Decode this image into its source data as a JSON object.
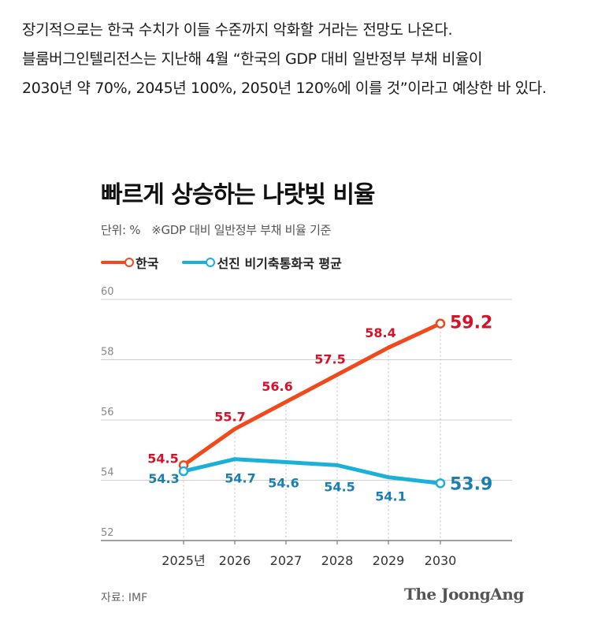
{
  "article": {
    "lines": [
      "장기적으로는 한국 수치가 이들 수준까지 악화할 거라는 전망도 나온다.",
      "블룸버그인텔리전스는 지난해 4월 “한국의 GDP 대비 일반정부 부채 비율이",
      "2030년 약 70%, 2045년 100%, 2050년 120%에 이를 것”이라고 예상한 바 있다."
    ]
  },
  "chart_data": {
    "type": "line",
    "title": "빠르게 상승하는 나랏빚 비율",
    "unit": "단위: %",
    "note": "※GDP 대비 일반정부 부채 비율 기준",
    "categories": [
      "2025년",
      "2026",
      "2027",
      "2028",
      "2029",
      "2030"
    ],
    "series": [
      {
        "name": "한국",
        "color": "#f04a1c",
        "label_color": "#d4132a",
        "values": [
          54.5,
          55.7,
          56.6,
          57.5,
          58.4,
          59.2
        ]
      },
      {
        "name": "선진 비기축통화국 평균",
        "color": "#1bb0d8",
        "label_color": "#1a7fb0",
        "values": [
          54.3,
          54.7,
          54.6,
          54.5,
          54.1,
          53.9
        ]
      }
    ],
    "ylim": [
      52,
      60
    ],
    "yticks": [
      52,
      54,
      56,
      58,
      60
    ],
    "grid": true,
    "legend": "top-left"
  },
  "footer": {
    "source": "자료: IMF",
    "logo": "The JoongAng"
  }
}
